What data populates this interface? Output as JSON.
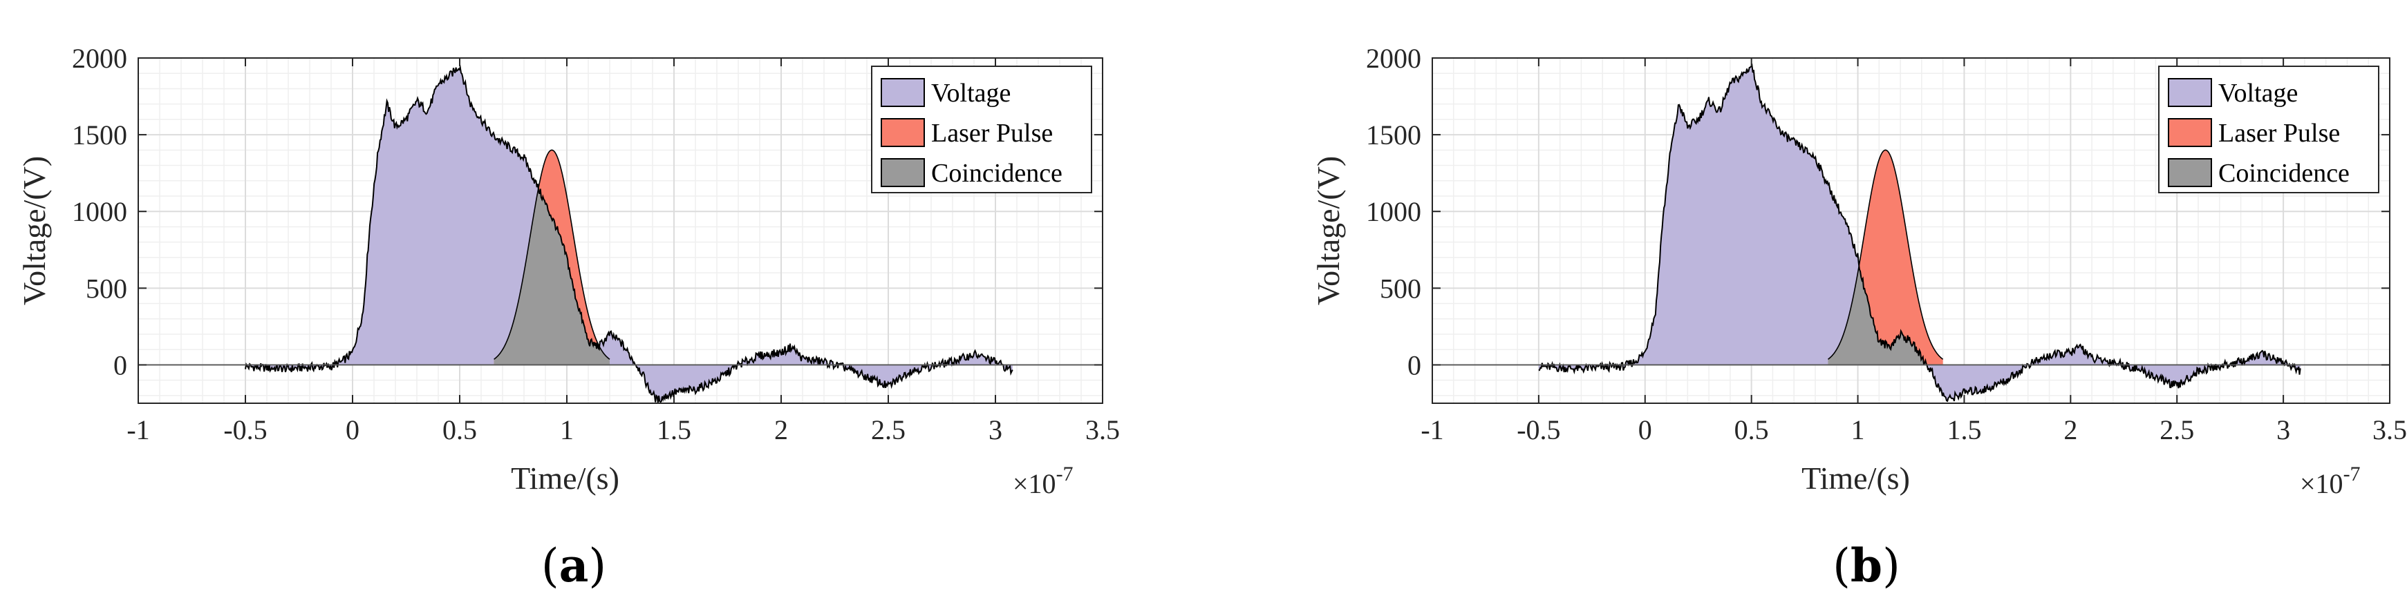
{
  "colors": {
    "voltage": "#bdb6dc",
    "laser": "#f97f6d",
    "coincidence": "#9a9a9a",
    "line": "#000000",
    "grid_major": "#dcdcdc",
    "grid_minor": "#efefef",
    "axis": "#262626"
  },
  "chart_data": [
    {
      "type": "area",
      "panel_label": "a",
      "xlabel": "Time/(s)",
      "ylabel": "Voltage/(V)",
      "x_exponent": "×10",
      "x_exponent_power": "-7",
      "xlim": [
        -1,
        3.5
      ],
      "ylim": [
        -250,
        2000
      ],
      "xticks": [
        "-1",
        "-0.5",
        "0",
        "0.5",
        "1",
        "1.5",
        "2",
        "2.5",
        "3",
        "3.5"
      ],
      "yticks": [
        "0",
        "500",
        "1000",
        "1500",
        "2000"
      ],
      "grid": true,
      "legend_position": "top-right",
      "legend": [
        "Voltage",
        "Laser Pulse",
        "Coincidence"
      ],
      "voltage": {
        "x": [
          -0.5,
          -0.4,
          -0.3,
          -0.2,
          -0.1,
          -0.05,
          0.0,
          0.05,
          0.08,
          0.12,
          0.16,
          0.2,
          0.25,
          0.3,
          0.35,
          0.4,
          0.45,
          0.5,
          0.55,
          0.6,
          0.65,
          0.7,
          0.75,
          0.8,
          0.85,
          0.9,
          0.95,
          1.0,
          1.03,
          1.07,
          1.1,
          1.15,
          1.2,
          1.25,
          1.3,
          1.35,
          1.38,
          1.42,
          1.5,
          1.6,
          1.7,
          1.8,
          1.9,
          2.0,
          2.05,
          2.1,
          2.2,
          2.3,
          2.4,
          2.5,
          2.6,
          2.7,
          2.8,
          2.9,
          3.0,
          3.08
        ],
        "y": [
          -10,
          -20,
          -25,
          -15,
          -10,
          20,
          80,
          350,
          900,
          1400,
          1700,
          1550,
          1600,
          1720,
          1650,
          1830,
          1880,
          1950,
          1700,
          1600,
          1500,
          1450,
          1400,
          1350,
          1200,
          1050,
          900,
          700,
          500,
          300,
          150,
          120,
          200,
          150,
          50,
          -50,
          -150,
          -230,
          -180,
          -160,
          -100,
          0,
          60,
          80,
          120,
          40,
          20,
          -20,
          -80,
          -140,
          -40,
          -10,
          20,
          70,
          20,
          -40
        ]
      },
      "laser_pulse": {
        "center": 0.93,
        "sigma": 0.1,
        "peak": 1400
      }
    },
    {
      "type": "area",
      "panel_label": "b",
      "xlabel": "Time/(s)",
      "ylabel": "Voltage/(V)",
      "x_exponent": "×10",
      "x_exponent_power": "-7",
      "xlim": [
        -1,
        3.5
      ],
      "ylim": [
        -250,
        2000
      ],
      "xticks": [
        "-1",
        "-0.5",
        "0",
        "0.5",
        "1",
        "1.5",
        "2",
        "2.5",
        "3",
        "3.5"
      ],
      "yticks": [
        "0",
        "500",
        "1000",
        "1500",
        "2000"
      ],
      "grid": true,
      "legend_position": "top-right",
      "legend": [
        "Voltage",
        "Laser Pulse",
        "Coincidence"
      ],
      "voltage": {
        "x": [
          -0.5,
          -0.4,
          -0.3,
          -0.2,
          -0.1,
          -0.05,
          0.0,
          0.05,
          0.08,
          0.12,
          0.16,
          0.2,
          0.25,
          0.3,
          0.35,
          0.4,
          0.45,
          0.5,
          0.55,
          0.6,
          0.65,
          0.7,
          0.75,
          0.8,
          0.85,
          0.9,
          0.95,
          1.0,
          1.03,
          1.07,
          1.1,
          1.15,
          1.2,
          1.25,
          1.3,
          1.35,
          1.38,
          1.42,
          1.5,
          1.6,
          1.7,
          1.8,
          1.9,
          2.0,
          2.05,
          2.1,
          2.2,
          2.3,
          2.4,
          2.5,
          2.6,
          2.7,
          2.8,
          2.9,
          3.0,
          3.08
        ],
        "y": [
          -10,
          -20,
          -25,
          -15,
          -10,
          20,
          80,
          350,
          900,
          1400,
          1700,
          1550,
          1600,
          1720,
          1650,
          1830,
          1880,
          1950,
          1700,
          1600,
          1500,
          1450,
          1400,
          1350,
          1200,
          1050,
          900,
          700,
          500,
          300,
          150,
          120,
          200,
          150,
          50,
          -50,
          -150,
          -230,
          -180,
          -160,
          -100,
          0,
          60,
          80,
          120,
          40,
          20,
          -20,
          -80,
          -140,
          -40,
          -10,
          20,
          70,
          20,
          -40
        ]
      },
      "laser_pulse": {
        "center": 1.13,
        "sigma": 0.1,
        "peak": 1400
      }
    }
  ]
}
